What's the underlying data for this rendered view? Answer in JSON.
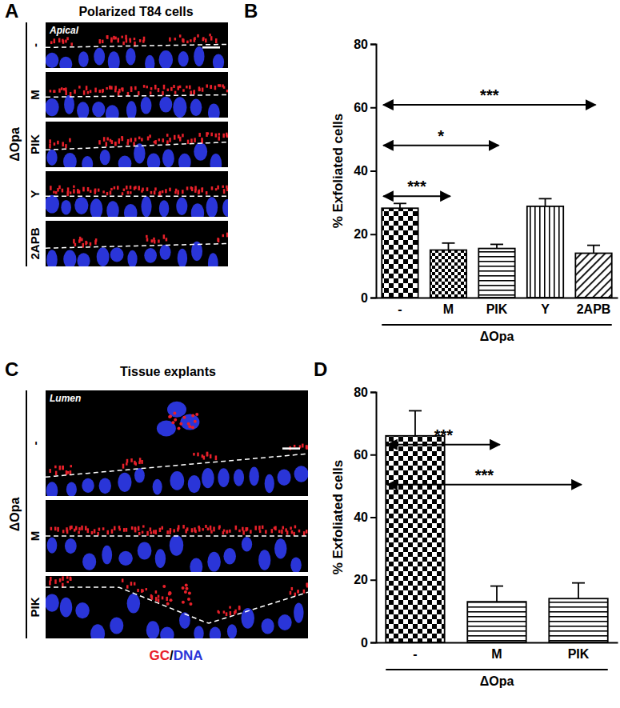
{
  "figure": {
    "panel_A": {
      "letter": "A",
      "title": "Polarized T84 cells",
      "inset_label": "Apical",
      "group_label": "ΔOpa",
      "row_labels": [
        "-",
        "M",
        "PIK",
        "Y",
        "2APB"
      ]
    },
    "panel_C": {
      "letter": "C",
      "title": "Tissue explants",
      "inset_label": "Lumen",
      "group_label": "ΔOpa",
      "row_labels": [
        "-",
        "M",
        "PIK"
      ],
      "stain_labels": [
        {
          "label": "GC",
          "color": "#e8202a"
        },
        {
          "label": "DNA",
          "color": "#2a35d8"
        }
      ],
      "stain_separator": "/"
    }
  },
  "chart_data": [
    {
      "type": "bar",
      "panel_label": "B",
      "categories": [
        "-",
        "M",
        "PIK",
        "Y",
        "2APB"
      ],
      "values": [
        28.2,
        15,
        15.5,
        28.8,
        14
      ],
      "errors": [
        1.5,
        2.2,
        1.3,
        2.4,
        2.5
      ],
      "y_label": "% Exfoliated cells",
      "x_label": "ΔOpa",
      "color": "#000000",
      "ylim": [
        0,
        80
      ],
      "yticks": [
        0,
        20,
        40,
        60,
        80
      ],
      "significance": [
        {
          "between": [
            0,
            1
          ],
          "label": "***"
        },
        {
          "between": [
            0,
            2
          ],
          "label": "*"
        },
        {
          "between": [
            0,
            4
          ],
          "label": "***"
        }
      ]
    },
    {
      "type": "bar",
      "panel_label": "D",
      "categories": [
        "-",
        "M",
        "PIK"
      ],
      "values": [
        66,
        13,
        14
      ],
      "errors": [
        8,
        5,
        5
      ],
      "y_label": "% Exfoliated cells",
      "x_label": "ΔOpa",
      "color": "#000000",
      "ylim": [
        0,
        80
      ],
      "yticks": [
        0,
        20,
        40,
        60,
        80
      ],
      "significance": [
        {
          "between": [
            0,
            1
          ],
          "label": "***"
        },
        {
          "between": [
            0,
            2
          ],
          "label": "***"
        }
      ]
    }
  ]
}
